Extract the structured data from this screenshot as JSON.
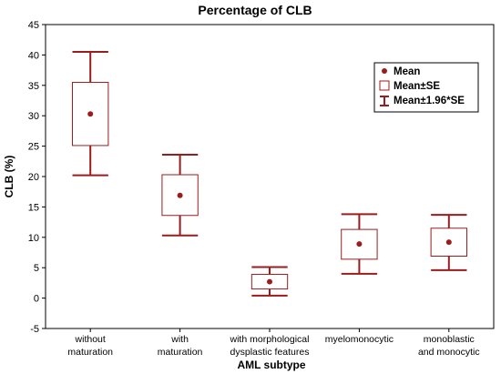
{
  "chart_data": {
    "type": "box",
    "title": "Percentage of CLB",
    "xlabel": "AML subtype",
    "ylabel": "CLB (%)",
    "ylim": [
      -5,
      45
    ],
    "yticks": [
      "-5",
      "0",
      "5",
      "10",
      "15",
      "20",
      "25",
      "30",
      "35",
      "40",
      "45"
    ],
    "grid": false,
    "legend_position": "top-right",
    "categories": [
      [
        "without",
        "maturation"
      ],
      [
        "with",
        "maturation"
      ],
      [
        "with morphological",
        "dysplastic features"
      ],
      [
        "myelomonocytic"
      ],
      [
        "monoblastic",
        "and monocytic"
      ]
    ],
    "series": [
      {
        "stat": "mean",
        "values": [
          30.3,
          16.9,
          2.7,
          8.9,
          9.2
        ]
      },
      {
        "stat": "mean_minus_se",
        "values": [
          25.1,
          13.6,
          1.5,
          6.4,
          6.9
        ]
      },
      {
        "stat": "mean_plus_se",
        "values": [
          35.5,
          20.3,
          3.9,
          11.3,
          11.5
        ]
      },
      {
        "stat": "mean_minus_1.96se",
        "values": [
          20.2,
          10.3,
          0.4,
          4.0,
          4.6
        ]
      },
      {
        "stat": "mean_plus_1.96se",
        "values": [
          40.5,
          23.6,
          5.1,
          13.8,
          13.7
        ]
      }
    ],
    "legend": [
      "Mean",
      "Mean±SE",
      "Mean±1.96*SE"
    ],
    "color": "#9b1c1c"
  }
}
